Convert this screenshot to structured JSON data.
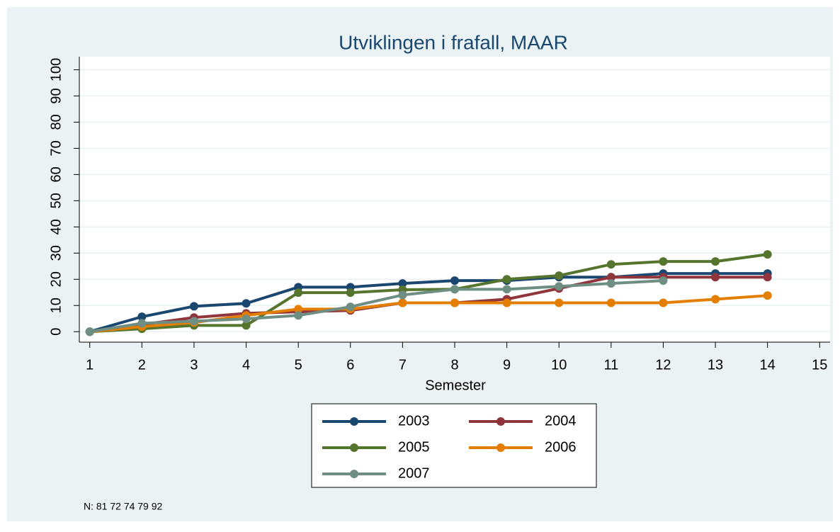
{
  "chart_data": {
    "type": "line",
    "title": "Utviklingen i frafall, MAAR",
    "x_label": "Semester",
    "note": "N: 81 72 74 79 92",
    "x": [
      1,
      2,
      3,
      4,
      5,
      6,
      7,
      8,
      9,
      10,
      11,
      12,
      13,
      14
    ],
    "xlim": [
      0.8,
      15.2
    ],
    "xticks": [
      1,
      2,
      3,
      4,
      5,
      6,
      7,
      8,
      9,
      10,
      11,
      12,
      13,
      14,
      15
    ],
    "ylim": [
      -4,
      105
    ],
    "yticks": [
      0,
      10,
      20,
      30,
      40,
      50,
      60,
      70,
      80,
      90,
      100
    ],
    "grid": true,
    "legend": "bottom",
    "series": [
      {
        "name": "2003",
        "color": "#1a476f",
        "values": [
          0,
          5.7,
          9.7,
          10.8,
          17,
          17,
          18.4,
          19.5,
          19.5,
          20.8,
          20.8,
          22.2,
          22.2,
          22.2
        ]
      },
      {
        "name": "2004",
        "color": "#90353b",
        "values": [
          0,
          2.7,
          5.4,
          7,
          7.6,
          8.1,
          11,
          11,
          12.4,
          16.5,
          20.8,
          20.8,
          20.8,
          20.8
        ]
      },
      {
        "name": "2005",
        "color": "#55752f",
        "values": [
          0,
          1.1,
          2.4,
          2.4,
          14.9,
          14.9,
          16,
          16.2,
          20,
          21.4,
          25.7,
          26.8,
          26.8,
          29.5
        ]
      },
      {
        "name": "2006",
        "color": "#e37e00",
        "values": [
          0,
          1.9,
          3.5,
          6.2,
          8.6,
          8.6,
          11,
          11,
          11,
          11,
          11,
          11,
          12.4,
          13.8
        ]
      },
      {
        "name": "2007",
        "color": "#6e8e84",
        "values": [
          0,
          3.2,
          4,
          4.9,
          6.2,
          9.5,
          14,
          16.2,
          16.2,
          17.3,
          18.4,
          19.5,
          null,
          null
        ]
      }
    ]
  }
}
